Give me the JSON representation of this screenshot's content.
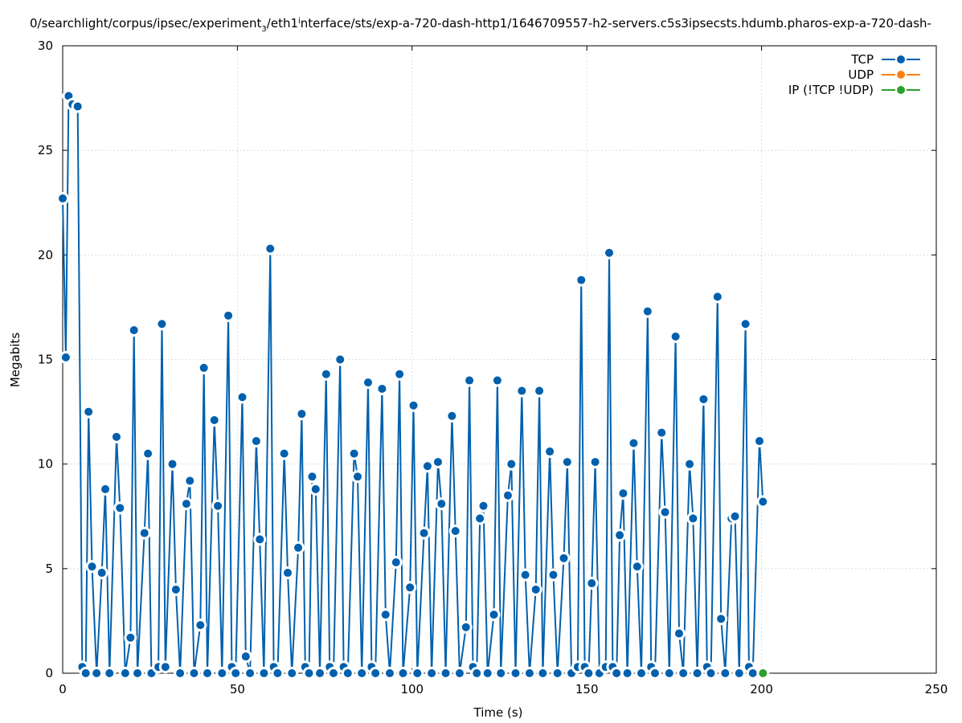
{
  "chart_data": {
    "type": "line",
    "title": "0/searchlight/corpus/ipsec/experiment",
    "title_sub1": "3",
    "title_mid": "/eth1",
    "title_sub2": "i",
    "title_rest": "nterface/sts/exp-a-720-dash-http1/1646709557-h2-servers.c5s3ipsecsts.hdumb.pharos-exp-a-720-dash-",
    "xlabel": "Time (s)",
    "ylabel": "Megabits",
    "xlim": [
      0,
      250
    ],
    "ylim": [
      0,
      30
    ],
    "xticks": [
      "0",
      "50",
      "100",
      "150",
      "200",
      "250"
    ],
    "yticks": [
      "0",
      "5",
      "10",
      "15",
      "20",
      "25",
      "30"
    ],
    "grid": true,
    "legend_position": "top-right",
    "series": [
      {
        "name": "TCP",
        "color": "#0060ad",
        "points": [
          [
            0,
            22.7
          ],
          [
            0.9,
            15.1
          ],
          [
            1.7,
            27.6
          ],
          [
            2.8,
            27.2
          ],
          [
            4.3,
            27.1
          ],
          [
            5.6,
            0.3
          ],
          [
            6.6,
            0
          ],
          [
            7.4,
            12.5
          ],
          [
            8.4,
            5.1
          ],
          [
            9.7,
            0
          ],
          [
            11.2,
            4.8
          ],
          [
            12.2,
            8.8
          ],
          [
            13.4,
            0
          ],
          [
            15.4,
            11.3
          ],
          [
            16.4,
            7.9
          ],
          [
            17.9,
            0
          ],
          [
            19.4,
            1.7
          ],
          [
            20.4,
            16.4
          ],
          [
            21.4,
            0
          ],
          [
            23.4,
            6.7
          ],
          [
            24.4,
            10.5
          ],
          [
            25.4,
            0
          ],
          [
            27.4,
            0.3
          ],
          [
            28.4,
            16.7
          ],
          [
            29.4,
            0.3
          ],
          [
            31.4,
            10.0
          ],
          [
            32.4,
            4.0
          ],
          [
            33.6,
            0
          ],
          [
            35.4,
            8.1
          ],
          [
            36.4,
            9.2
          ],
          [
            37.6,
            0
          ],
          [
            39.4,
            2.3
          ],
          [
            40.4,
            14.6
          ],
          [
            41.4,
            0
          ],
          [
            43.4,
            12.1
          ],
          [
            44.4,
            8.0
          ],
          [
            45.6,
            0
          ],
          [
            47.4,
            17.1
          ],
          [
            48.4,
            0.3
          ],
          [
            49.5,
            0
          ],
          [
            51.4,
            13.2
          ],
          [
            52.4,
            0.8
          ],
          [
            53.6,
            0
          ],
          [
            55.4,
            11.1
          ],
          [
            56.4,
            6.4
          ],
          [
            57.6,
            0
          ],
          [
            59.4,
            20.3
          ],
          [
            60.4,
            0.3
          ],
          [
            61.5,
            0
          ],
          [
            63.4,
            10.5
          ],
          [
            64.4,
            4.8
          ],
          [
            65.6,
            0
          ],
          [
            67.4,
            6.0
          ],
          [
            68.4,
            12.4
          ],
          [
            69.4,
            0.3
          ],
          [
            70.5,
            0
          ],
          [
            71.4,
            9.4
          ],
          [
            72.4,
            8.8
          ],
          [
            73.6,
            0
          ],
          [
            75.4,
            14.3
          ],
          [
            76.4,
            0.3
          ],
          [
            77.5,
            0
          ],
          [
            79.4,
            15.0
          ],
          [
            80.4,
            0.3
          ],
          [
            81.6,
            0
          ],
          [
            83.4,
            10.5
          ],
          [
            84.4,
            9.4
          ],
          [
            85.6,
            0
          ],
          [
            87.4,
            13.9
          ],
          [
            88.4,
            0.3
          ],
          [
            89.5,
            0
          ],
          [
            91.4,
            13.6
          ],
          [
            92.4,
            2.8
          ],
          [
            93.6,
            0
          ],
          [
            95.4,
            5.3
          ],
          [
            96.4,
            14.3
          ],
          [
            97.4,
            0
          ],
          [
            99.4,
            4.1
          ],
          [
            100.4,
            12.8
          ],
          [
            101.5,
            0
          ],
          [
            103.4,
            6.7
          ],
          [
            104.4,
            9.9
          ],
          [
            105.6,
            0
          ],
          [
            107.4,
            10.1
          ],
          [
            108.4,
            8.1
          ],
          [
            109.6,
            0
          ],
          [
            111.4,
            12.3
          ],
          [
            112.4,
            6.8
          ],
          [
            113.6,
            0
          ],
          [
            115.4,
            2.2
          ],
          [
            116.4,
            14.0
          ],
          [
            117.4,
            0.3
          ],
          [
            118.5,
            0
          ],
          [
            119.4,
            7.4
          ],
          [
            120.4,
            8.0
          ],
          [
            121.6,
            0
          ],
          [
            123.4,
            2.8
          ],
          [
            124.4,
            14.0
          ],
          [
            125.4,
            0
          ],
          [
            127.4,
            8.5
          ],
          [
            128.4,
            10.0
          ],
          [
            129.6,
            0
          ],
          [
            131.4,
            13.5
          ],
          [
            132.4,
            4.7
          ],
          [
            133.6,
            0
          ],
          [
            135.4,
            4.0
          ],
          [
            136.4,
            13.5
          ],
          [
            137.4,
            0
          ],
          [
            139.4,
            10.6
          ],
          [
            140.4,
            4.7
          ],
          [
            141.6,
            0
          ],
          [
            143.4,
            5.5
          ],
          [
            144.4,
            10.1
          ],
          [
            145.6,
            0
          ],
          [
            147.4,
            0.3
          ],
          [
            148.4,
            18.8
          ],
          [
            149.4,
            0.3
          ],
          [
            150.5,
            0
          ],
          [
            151.4,
            4.3
          ],
          [
            152.4,
            10.1
          ],
          [
            153.6,
            0
          ],
          [
            155.4,
            0.3
          ],
          [
            156.4,
            20.1
          ],
          [
            157.4,
            0.3
          ],
          [
            158.5,
            0
          ],
          [
            159.4,
            6.6
          ],
          [
            160.4,
            8.6
          ],
          [
            161.6,
            0
          ],
          [
            163.4,
            11.0
          ],
          [
            164.4,
            5.1
          ],
          [
            165.6,
            0
          ],
          [
            167.4,
            17.3
          ],
          [
            168.4,
            0.3
          ],
          [
            169.5,
            0
          ],
          [
            171.4,
            11.5
          ],
          [
            172.4,
            7.7
          ],
          [
            173.6,
            0
          ],
          [
            175.4,
            16.1
          ],
          [
            176.4,
            1.9
          ],
          [
            177.6,
            0
          ],
          [
            179.4,
            10.0
          ],
          [
            180.4,
            7.4
          ],
          [
            181.6,
            0
          ],
          [
            183.4,
            13.1
          ],
          [
            184.4,
            0.3
          ],
          [
            185.5,
            0
          ],
          [
            187.4,
            18.0
          ],
          [
            188.4,
            2.6
          ],
          [
            189.6,
            0
          ],
          [
            191.4,
            7.4
          ],
          [
            192.4,
            7.5
          ],
          [
            193.6,
            0
          ],
          [
            195.4,
            16.7
          ],
          [
            196.4,
            0.3
          ],
          [
            197.5,
            0
          ],
          [
            199.4,
            11.1
          ],
          [
            200.4,
            8.2
          ]
        ]
      },
      {
        "name": "UDP",
        "color": "#ff7f0e",
        "points": []
      },
      {
        "name": "IP (!TCP  !UDP)",
        "color": "#2ca02c",
        "points": [
          [
            200.4,
            0
          ]
        ]
      }
    ]
  }
}
